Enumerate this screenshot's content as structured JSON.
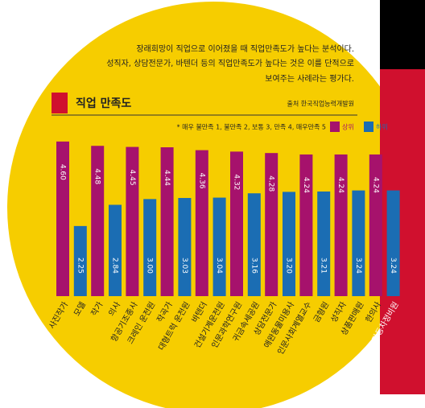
{
  "chart_data": {
    "type": "bar",
    "title": "직업 만족도",
    "subtitle": [
      "장래희망이 직업으로 이어졌을 때 직업만족도가 높다는 분석이다.",
      "성직자, 상담전문가, 바텐더 등의 직업만족도가 높다는 것은 이를 단적으로",
      "보여주는 사례라는 평가다."
    ],
    "source": "출처 한국직업능력개발원",
    "note": "* 매우 불만족 1, 불만족 2, 보통 3, 만족 4, 매우만족 5",
    "ylim": [
      0.3,
      5
    ],
    "series": [
      {
        "name": "상위",
        "color": "#a6126c",
        "categories": [
          "사진작가",
          "작가",
          "항공기조종사",
          "작곡가",
          "바텐더",
          "인문과학연구원",
          "상담전문가",
          "인문사회계열교수",
          "성직자",
          "한의사"
        ],
        "values": [
          4.6,
          4.48,
          4.45,
          4.44,
          4.36,
          4.32,
          4.28,
          4.24,
          4.24,
          4.24
        ],
        "value_labels": [
          "4.60",
          "4.48",
          "4.45",
          "4.44",
          "4.36",
          "4.32",
          "4.28",
          "4.24",
          "4.24",
          "4.24"
        ]
      },
      {
        "name": "하위",
        "color": "#1b6db3",
        "categories": [
          "모델",
          "의사",
          "크레인 운전원",
          "대형트럭 운전원",
          "건설기계운전원",
          "귀금속세공원",
          "애완동물미용사",
          "금형원",
          "상품판매원",
          "자동차정비원"
        ],
        "values": [
          2.25,
          2.84,
          3.0,
          3.03,
          3.04,
          3.16,
          3.2,
          3.21,
          3.24,
          3.24
        ],
        "value_labels": [
          "2.25",
          "2.84",
          "3.00",
          "3.03",
          "3.04",
          "3.16",
          "3.20",
          "3.21",
          "3.24",
          "3.24"
        ]
      }
    ]
  }
}
